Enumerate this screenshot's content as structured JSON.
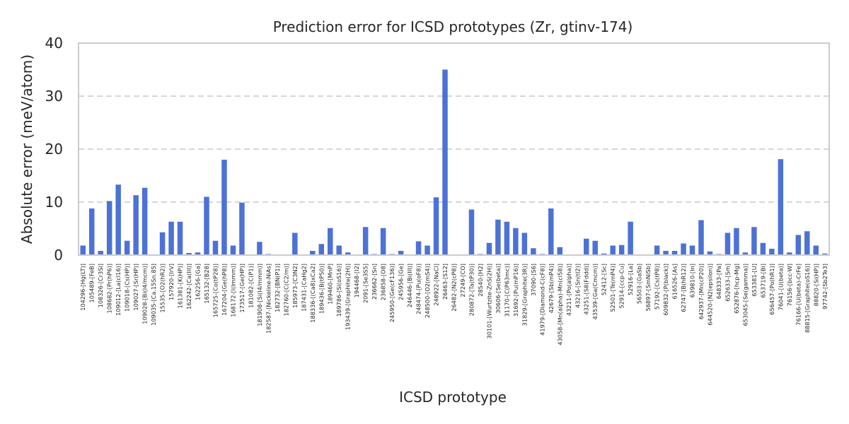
{
  "chart_data": {
    "type": "bar",
    "title": "Prediction error for ICSD prototypes (Zr, gtinv-174)",
    "xlabel": "ICSD prototype",
    "ylabel": "Absolute error (meV/atom)",
    "ylim": [
      0,
      40
    ],
    "yticks": [
      0,
      10,
      20,
      30,
      40
    ],
    "grid": "horizontal dashed",
    "bar_color": "#4c72d6",
    "categories": [
      "104296-[Hg(LT)]",
      "105489-[FeB]",
      "108326-[Cr3Si]",
      "108682-[Pr(hP6)]",
      "109012-[La(cI16)]",
      "109018-[Cs(HP)]",
      "109027-[Sr(HP)]",
      "109028-[Bi(I4/mcm)]",
      "109035-[Ca.15Sn.85]",
      "15535-[O2(hR2)]",
      "157920-[IrV]",
      "161381-[K(HP)]",
      "162242-[Ca(III)]",
      "162256-[Ga]",
      "165132-[B28]",
      "165725-[Co(tP28)]",
      "167204-[Ge(hP8)]",
      "168172-[I(Immm)]",
      "173517-[Ge(HP)]",
      "181082-[C(P1)]",
      "181908-[Si(I4/mmm)]",
      "182587-[Nickeline-NiAs]",
      "182732-[BN(P1)]",
      "182760-[C(C2/m)]",
      "185973-[C3N2]",
      "187431-[CaHg2]",
      "188336-[(Ca8)xCa2]",
      "189436-[B(tP50)]",
      "189460-[MnP]",
      "189786-[Si(oS16)]",
      "193439-[Graphite(2H)]",
      "194468-[I2]",
      "2091-[Se3S5]",
      "236662-[Sn]",
      "236858-[O8]",
      "245950-[Ge(cF136)]",
      "245956-[Ge]",
      "246446-[Bi(III)]",
      "248474-[Pu(oF8)]",
      "248500-[O2(mS4)]",
      "248922-[NaCl]",
      "26463-[S12]",
      "26482-[N2(cP8)]",
      "27249-[CO]",
      "280872-[Ta(tP30)]",
      "28540-[H2]",
      "30101-[Wurtzite-ZnS(2H)]",
      "30606-[Se(beta)]",
      "31170-[C(P63mc)]",
      "31692-[Pu(mP16)]",
      "31829-[Graphite(3R)]",
      "37090-[S6]",
      "41979-[Diamond-C(cF8)]",
      "42679-[Sb(mP4)]",
      "43058-[Mn(alpha)-Mn(cI58)]",
      "43211-[Po(alpha)]",
      "43216-[Sn(tI2)]",
      "43251-[S8(Fddd)]",
      "43539-[Ga(Cmcm)]",
      "52412-[Sc]",
      "52501-[Te(mP4)]",
      "52914-[ccp-Cu]",
      "52916-[La]",
      "56503-[GaSb]",
      "56897-[SmNiSb]",
      "57192-[Cs(tP8)]",
      "609832-[P(black)]",
      "616526-[As]",
      "62747-[B(hR12)]",
      "639810-[In]",
      "642937-[Mn(cP20)]",
      "644520-[N2(epsilon)]",
      "648333-[Pa]",
      "652633-[Sm]",
      "652876-[hcp-Mg]",
      "653045-[Se(gamma)]",
      "653381-[U]",
      "653719-[Bi]",
      "656457-[Po(hR1)]",
      "76041-[U(beta)]",
      "76156-[bcc-W]",
      "76166-[U(beta)-CrFe]",
      "88815-[Graphite(oS16)]",
      "88820-[Si(HP)]",
      "97742-[Sb2Te3]"
    ],
    "values": [
      1.8,
      8.8,
      0.8,
      10.2,
      13.3,
      2.7,
      11.3,
      12.7,
      0.1,
      4.3,
      6.3,
      6.3,
      0.4,
      0.5,
      11.0,
      2.7,
      18.0,
      1.8,
      9.9,
      0.0,
      2.5,
      0.2,
      0.0,
      0.0,
      4.2,
      0.0,
      0.8,
      2.1,
      5.1,
      1.8,
      0.5,
      0.0,
      5.3,
      0.2,
      5.1,
      0.2,
      0.8,
      0.0,
      2.6,
      1.8,
      10.9,
      35.0,
      0.0,
      0.0,
      8.6,
      0.2,
      2.3,
      6.7,
      6.3,
      5.1,
      4.2,
      1.3,
      0.2,
      8.8,
      1.5,
      0.0,
      0.0,
      3.1,
      2.7,
      0.3,
      1.8,
      1.9,
      6.3,
      0.0,
      0.0,
      1.8,
      0.8,
      0.8,
      2.2,
      1.8,
      6.6,
      0.7,
      0.2,
      4.2,
      5.1,
      0.5,
      5.3,
      2.3,
      1.2,
      18.1,
      0.5,
      3.8,
      4.5,
      1.8,
      0.3
    ]
  }
}
